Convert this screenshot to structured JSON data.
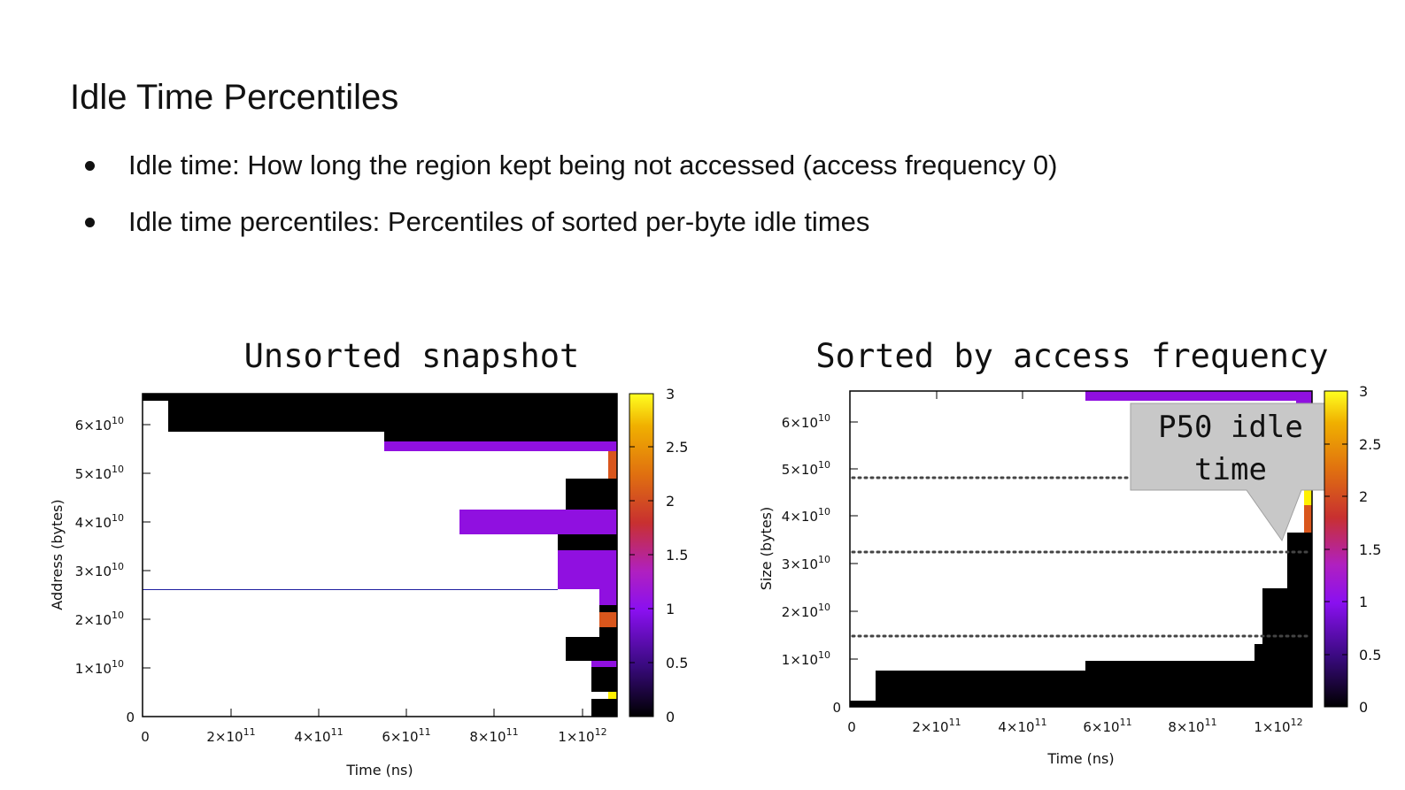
{
  "slide": {
    "title": "Idle Time Percentiles",
    "bullets": [
      "Idle time: How long the region kept being not accessed (access frequency 0)",
      "Idle time percentiles: Percentiles of sorted per-byte idle times"
    ]
  },
  "left_plot": {
    "title": "Unsorted snapshot",
    "xlabel": "Time (ns)",
    "ylabel": "Address (bytes)",
    "xticks": [
      "0",
      "2×10",
      "4×10",
      "6×10",
      "8×10",
      "1×10"
    ],
    "xtick_exp": [
      "",
      "11",
      "11",
      "11",
      "11",
      "12"
    ],
    "yticks": [
      "0",
      "1×10",
      "2×10",
      "3×10",
      "4×10",
      "5×10",
      "6×10"
    ],
    "ytick_exp": [
      "",
      "10",
      "10",
      "10",
      "10",
      "10",
      "10"
    ],
    "cbticks": [
      "0",
      "0.5",
      "1",
      "1.5",
      "2",
      "2.5",
      "3"
    ]
  },
  "right_plot": {
    "title": "Sorted by access frequency",
    "xlabel": "Time (ns)",
    "ylabel": "Size (bytes)",
    "xticks": [
      "0",
      "2×10",
      "4×10",
      "6×10",
      "8×10",
      "1×10"
    ],
    "xtick_exp": [
      "",
      "11",
      "11",
      "11",
      "11",
      "12"
    ],
    "yticks": [
      "0",
      "1×10",
      "2×10",
      "3×10",
      "4×10",
      "5×10",
      "6×10"
    ],
    "ytick_exp": [
      "",
      "10",
      "10",
      "10",
      "10",
      "10",
      "10"
    ],
    "cbticks": [
      "0",
      "0.5",
      "1",
      "1.5",
      "2",
      "2.5",
      "3"
    ],
    "callout": {
      "line1": "P50 idle",
      "line2": "time"
    }
  },
  "colors": {
    "black": "#000000",
    "purple": "#9010e0",
    "orange": "#d9561c",
    "yellow": "#fff000",
    "blue_line": "#2020a0",
    "callout_bg": "#c8c8c8"
  }
}
